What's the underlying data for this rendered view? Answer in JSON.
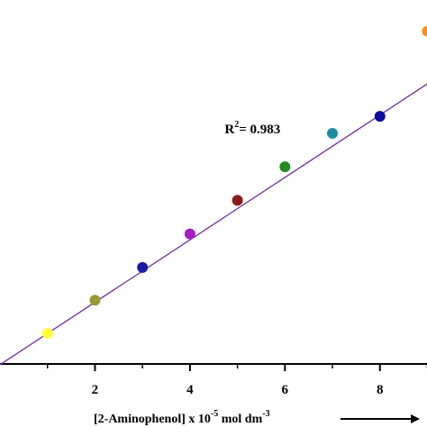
{
  "chart_data": {
    "type": "scatter",
    "xlim": [
      0,
      9.2
    ],
    "ylim": [
      0,
      10
    ],
    "x_ticks": [
      2,
      4,
      6,
      8
    ],
    "x_minor_ticks": [
      1,
      3,
      5,
      7,
      9
    ],
    "x_tick_labels": [
      "2",
      "4",
      "6",
      "8"
    ],
    "xlabel": "[2-Aminophenol] x 10^-5 mol dm^-3",
    "xlabel_parts": {
      "main": "[2-Aminophenol] x 10",
      "exponent": "-5",
      "unit": " mol dm",
      "unit_exponent": "-3"
    },
    "ylabel": "",
    "grid": false,
    "annotation": {
      "text_main": "R",
      "text_sup": "2",
      "text_rest": "= 0.983",
      "at": [
        5.3,
        6.5
      ]
    },
    "fit_line": {
      "slope": 0.847,
      "intercept": -0.02,
      "x_range": [
        0,
        9.2
      ],
      "color": "#7030a0"
    },
    "points": [
      {
        "x": 1,
        "y": 0.83,
        "color": "#ffff33"
      },
      {
        "x": 2,
        "y": 1.73,
        "color": "#999933"
      },
      {
        "x": 3,
        "y": 2.62,
        "color": "#1a1aa6"
      },
      {
        "x": 4,
        "y": 3.53,
        "color": "#a020c0"
      },
      {
        "x": 5,
        "y": 4.44,
        "color": "#8b1a1a"
      },
      {
        "x": 6,
        "y": 5.35,
        "color": "#228b22"
      },
      {
        "x": 7,
        "y": 6.26,
        "color": "#1a8fa0"
      },
      {
        "x": 8,
        "y": 6.72,
        "color": "#0a0aa0"
      },
      {
        "x": 9,
        "y": 9.03,
        "color": "#ff8c1a"
      }
    ]
  }
}
